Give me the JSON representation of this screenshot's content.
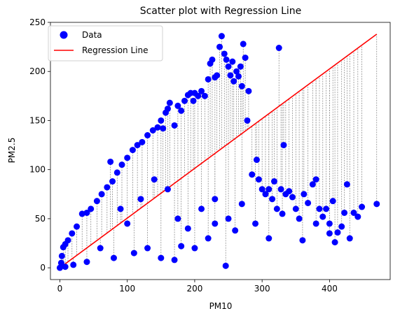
{
  "chart_data": {
    "type": "scatter",
    "title": "Scatter plot with Regression Line",
    "xlabel": "PM10",
    "ylabel": "PM2.5",
    "xlim": [
      -14,
      490
    ],
    "ylim": [
      -12,
      250
    ],
    "xticks": [
      0,
      100,
      200,
      300,
      400
    ],
    "yticks": [
      0,
      50,
      100,
      150,
      200,
      250
    ],
    "grid": false,
    "legend_position": "top-left",
    "colors": {
      "data": "#0000ff",
      "regression": "#ff0000",
      "residual": "#808080"
    },
    "series": [
      {
        "name": "Data",
        "kind": "scatter",
        "points": [
          [
            0,
            0
          ],
          [
            2,
            5
          ],
          [
            3,
            12
          ],
          [
            5,
            21
          ],
          [
            8,
            24
          ],
          [
            12,
            28
          ],
          [
            18,
            35
          ],
          [
            25,
            42
          ],
          [
            33,
            55
          ],
          [
            40,
            56
          ],
          [
            46,
            60
          ],
          [
            55,
            68
          ],
          [
            62,
            75
          ],
          [
            70,
            82
          ],
          [
            75,
            108
          ],
          [
            78,
            88
          ],
          [
            85,
            97
          ],
          [
            92,
            105
          ],
          [
            100,
            112
          ],
          [
            108,
            120
          ],
          [
            115,
            125
          ],
          [
            122,
            128
          ],
          [
            130,
            135
          ],
          [
            138,
            140
          ],
          [
            145,
            143
          ],
          [
            150,
            150
          ],
          [
            153,
            142
          ],
          [
            157,
            158
          ],
          [
            160,
            162
          ],
          [
            163,
            168
          ],
          [
            170,
            145
          ],
          [
            175,
            165
          ],
          [
            180,
            160
          ],
          [
            185,
            170
          ],
          [
            190,
            176
          ],
          [
            194,
            178
          ],
          [
            198,
            170
          ],
          [
            200,
            178
          ],
          [
            205,
            175
          ],
          [
            210,
            180
          ],
          [
            215,
            175
          ],
          [
            220,
            192
          ],
          [
            223,
            208
          ],
          [
            226,
            212
          ],
          [
            230,
            194
          ],
          [
            233,
            196
          ],
          [
            237,
            225
          ],
          [
            240,
            236
          ],
          [
            244,
            218
          ],
          [
            247,
            212
          ],
          [
            250,
            205
          ],
          [
            253,
            196
          ],
          [
            256,
            210
          ],
          [
            258,
            190
          ],
          [
            262,
            200
          ],
          [
            265,
            195
          ],
          [
            268,
            205
          ],
          [
            270,
            185
          ],
          [
            272,
            228
          ],
          [
            275,
            214
          ],
          [
            278,
            150
          ],
          [
            280,
            180
          ],
          [
            285,
            95
          ],
          [
            292,
            110
          ],
          [
            295,
            90
          ],
          [
            300,
            80
          ],
          [
            305,
            75
          ],
          [
            310,
            80
          ],
          [
            315,
            70
          ],
          [
            318,
            88
          ],
          [
            322,
            60
          ],
          [
            325,
            224
          ],
          [
            328,
            80
          ],
          [
            332,
            125
          ],
          [
            335,
            75
          ],
          [
            340,
            78
          ],
          [
            345,
            72
          ],
          [
            350,
            60
          ],
          [
            355,
            50
          ],
          [
            362,
            75
          ],
          [
            368,
            66
          ],
          [
            375,
            85
          ],
          [
            380,
            90
          ],
          [
            385,
            60
          ],
          [
            390,
            52
          ],
          [
            395,
            60
          ],
          [
            400,
            45
          ],
          [
            405,
            68
          ],
          [
            408,
            26
          ],
          [
            412,
            36
          ],
          [
            418,
            42
          ],
          [
            422,
            56
          ],
          [
            426,
            85
          ],
          [
            430,
            30
          ],
          [
            436,
            56
          ],
          [
            442,
            52
          ],
          [
            448,
            62
          ],
          [
            470,
            65
          ],
          [
            150,
            10
          ],
          [
            180,
            22
          ],
          [
            200,
            20
          ],
          [
            220,
            30
          ],
          [
            246,
            2
          ],
          [
            260,
            38
          ],
          [
            290,
            45
          ],
          [
            310,
            30
          ],
          [
            330,
            55
          ],
          [
            360,
            28
          ],
          [
            380,
            45
          ],
          [
            400,
            35
          ],
          [
            120,
            70
          ],
          [
            140,
            90
          ],
          [
            160,
            80
          ],
          [
            175,
            50
          ],
          [
            190,
            40
          ],
          [
            210,
            60
          ],
          [
            230,
            70
          ],
          [
            250,
            50
          ],
          [
            110,
            15
          ],
          [
            130,
            20
          ],
          [
            90,
            60
          ],
          [
            100,
            45
          ],
          [
            60,
            20
          ],
          [
            80,
            10
          ],
          [
            40,
            6
          ],
          [
            20,
            3
          ],
          [
            8,
            1
          ],
          [
            170,
            8
          ],
          [
            230,
            45
          ],
          [
            270,
            65
          ]
        ]
      },
      {
        "name": "Regression Line",
        "kind": "line",
        "points": [
          [
            0,
            0
          ],
          [
            470,
            238
          ]
        ]
      }
    ]
  }
}
